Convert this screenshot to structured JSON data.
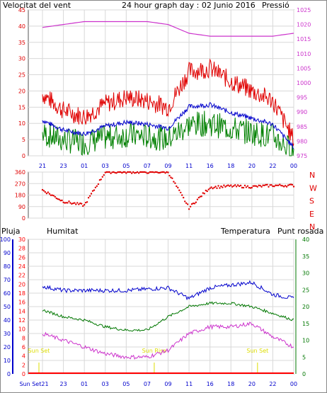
{
  "colors": {
    "wind": "#e00000",
    "wind_avg": "#0000cc",
    "wind_dir": "#e00000",
    "pressure": "#cc33cc",
    "rain": "#ff0000",
    "humidity": "#0000cc",
    "temperature": "#007700",
    "dewpoint": "#cc33cc",
    "gust": "#008000",
    "sunset": "#dddd00",
    "grid": "#d8d8d8",
    "axis": "#0000cc"
  },
  "panel1": {
    "title": "24 hour graph day : 02 Junio 2016",
    "left_label": "Velocitat del vent",
    "right_label": "Pressió",
    "wind_ticks": [
      "0",
      "5",
      "10",
      "15",
      "20",
      "25",
      "30",
      "35",
      "40",
      "45"
    ],
    "pressure_ticks": [
      "975",
      "980",
      "985",
      "990",
      "995",
      "1000",
      "1005",
      "1010",
      "1015",
      "1020",
      "1025"
    ],
    "x_ticks": [
      "21",
      "23",
      "01",
      "03",
      "05",
      "07",
      "09",
      "11",
      "16",
      "18",
      "20",
      "22",
      "00"
    ]
  },
  "panel2": {
    "dir_ticks": [
      "360",
      "270",
      "180",
      "90",
      "0"
    ],
    "compass": [
      "N",
      "W",
      "S",
      "E",
      "N"
    ]
  },
  "panel3": {
    "left_label": "Pluja",
    "hum_label": "Humitat",
    "temp_label": "Temperatura",
    "dew_label": "Punt rosada",
    "hum_ticks": [
      "0",
      "10",
      "20",
      "30",
      "40",
      "50",
      "60",
      "70",
      "80",
      "90",
      "100"
    ],
    "rain_ticks": [
      "0",
      "2",
      "4",
      "6",
      "8",
      "10",
      "12",
      "14",
      "16",
      "18",
      "20",
      "22",
      "24",
      "26",
      "28",
      "30"
    ],
    "temp_ticks": [
      "0",
      "5",
      "10",
      "15",
      "20",
      "25",
      "30",
      "35",
      "40"
    ],
    "x_ticks": [
      "Sun Set21",
      "23",
      "01",
      "03",
      "05",
      "07",
      "09",
      "11",
      "16",
      "18",
      "20",
      "22",
      "00"
    ],
    "sunset_labels": [
      "Sun Set",
      "Sun Rise",
      "Sun Set"
    ]
  },
  "chart_data": [
    {
      "type": "line",
      "title": "24 hour graph day : 02 Junio 2016",
      "x": [
        "21",
        "23",
        "01",
        "03",
        "05",
        "07",
        "09",
        "11",
        "16",
        "18",
        "20",
        "22",
        "00"
      ],
      "series": [
        {
          "name": "Velocitat del vent",
          "values": [
            17,
            12,
            10,
            14,
            16,
            15,
            13,
            24,
            25,
            21,
            18,
            15,
            3
          ]
        },
        {
          "name": "Pressió",
          "values": [
            1019,
            1020,
            1021,
            1021,
            1021,
            1021,
            1020,
            1017,
            1016,
            1016,
            1016,
            1016,
            1017
          ]
        }
      ],
      "ylim": [
        0,
        45
      ],
      "y2lim": [
        975,
        1025
      ]
    },
    {
      "type": "scatter",
      "x": [
        "21",
        "23",
        "01",
        "03",
        "05",
        "07",
        "09",
        "11",
        "16",
        "18",
        "20",
        "22",
        "00"
      ],
      "series": [
        {
          "name": "direction",
          "values": [
            220,
            130,
            100,
            360,
            360,
            360,
            360,
            80,
            240,
            250,
            245,
            255,
            255
          ]
        }
      ],
      "ylim": [
        0,
        360
      ]
    },
    {
      "type": "line",
      "x": [
        "Sun Set21",
        "23",
        "01",
        "03",
        "05",
        "07",
        "09",
        "11",
        "16",
        "18",
        "20",
        "22",
        "00"
      ],
      "series": [
        {
          "name": "Humitat",
          "values": [
            65,
            62,
            62,
            62,
            62,
            63,
            64,
            56,
            64,
            66,
            68,
            59,
            56
          ]
        },
        {
          "name": "Temperatura",
          "values": [
            19,
            17,
            16,
            14,
            13,
            13,
            17,
            20,
            21,
            21,
            20,
            18,
            16
          ]
        },
        {
          "name": "Punt rosada",
          "values": [
            12,
            10,
            8,
            6,
            5,
            5,
            7,
            12,
            14,
            14,
            15,
            11,
            8
          ]
        },
        {
          "name": "Pluja",
          "values": [
            0,
            0,
            0,
            0,
            0,
            0,
            0,
            0,
            0,
            0,
            0,
            0,
            0
          ]
        }
      ],
      "ylim": [
        0,
        100
      ],
      "y2lim": [
        0,
        40
      ]
    }
  ]
}
